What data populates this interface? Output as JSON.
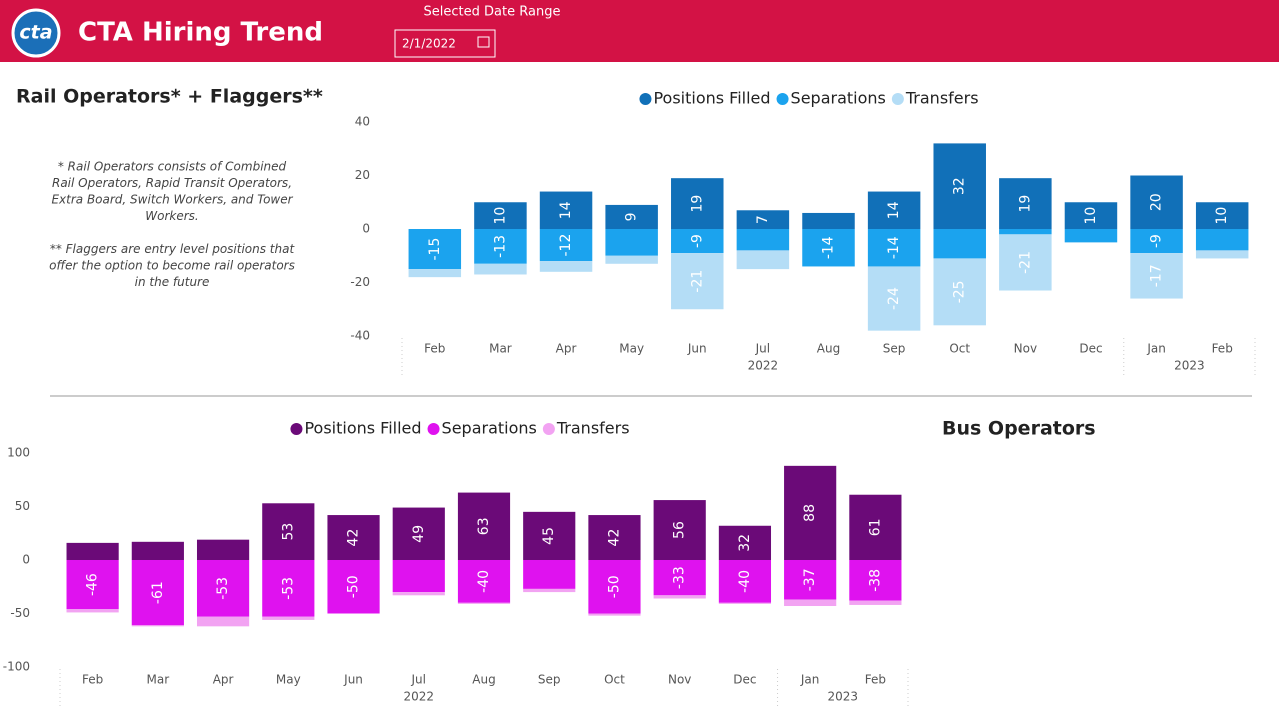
{
  "header": {
    "logo": "cta",
    "title": "CTA Hiring Trend",
    "date_label": "Selected Date Range",
    "date_value": "2/1/2022"
  },
  "rail_panel": {
    "title": "Rail Operators* + Flaggers**",
    "notes": [
      [
        "* Rail Operators consists of Combined",
        "Rail Operators, Rapid Transit Operators,",
        "Extra Board, Switch Workers, and Tower",
        "Workers."
      ],
      [
        "** Flaggers are entry level positions that",
        "offer the option to become rail operators",
        "in the future"
      ]
    ]
  },
  "bus_panel": {
    "title": "Bus Operators"
  },
  "chart_data": [
    {
      "type": "bar",
      "stacked": true,
      "categories": [
        "Feb",
        "Mar",
        "Apr",
        "May",
        "Jun",
        "Jul",
        "Aug",
        "Sep",
        "Oct",
        "Nov",
        "Dec",
        "Jan",
        "Feb"
      ],
      "x_groups": [
        {
          "label": "2022",
          "count": 11
        },
        {
          "label": "2023",
          "count": 2
        }
      ],
      "ylim": [
        -40,
        40
      ],
      "yticks": [
        -40,
        -20,
        0,
        20,
        40
      ],
      "series": [
        {
          "name": "Positions Filled",
          "color": "#1170b8",
          "values": [
            0,
            10,
            14,
            9,
            19,
            7,
            6,
            14,
            32,
            19,
            10,
            20,
            10
          ],
          "value_labels": [
            null,
            "10",
            "14",
            "9",
            "19",
            "7",
            null,
            "14",
            "32",
            "19",
            "10",
            "20",
            "10"
          ]
        },
        {
          "name": "Separations",
          "color": "#1ba3ee",
          "values": [
            -15,
            -13,
            -12,
            -10,
            -9,
            -8,
            -14,
            -14,
            -11,
            -2,
            -5,
            -9,
            -8
          ],
          "value_labels": [
            "-15",
            "-13",
            "-12",
            null,
            "-9",
            null,
            "-14",
            "-14",
            null,
            null,
            null,
            "-9",
            null
          ]
        },
        {
          "name": "Transfers",
          "color": "#b4ddf6",
          "values": [
            -3,
            -4,
            -4,
            -3,
            -21,
            -7,
            0,
            -24,
            -25,
            -21,
            0,
            -17,
            -3
          ],
          "value_labels": [
            null,
            null,
            null,
            null,
            "-21",
            null,
            null,
            "-24",
            "-25",
            "-21",
            null,
            "-17",
            null
          ]
        }
      ]
    },
    {
      "type": "bar",
      "stacked": true,
      "categories": [
        "Feb",
        "Mar",
        "Apr",
        "May",
        "Jun",
        "Jul",
        "Aug",
        "Sep",
        "Oct",
        "Nov",
        "Dec",
        "Jan",
        "Feb"
      ],
      "x_groups": [
        {
          "label": "2022",
          "count": 11
        },
        {
          "label": "2023",
          "count": 2
        }
      ],
      "ylim": [
        -100,
        100
      ],
      "yticks": [
        -100,
        -50,
        0,
        50,
        100
      ],
      "series": [
        {
          "name": "Positions Filled",
          "color": "#6b0a78",
          "values": [
            16,
            17,
            19,
            53,
            42,
            49,
            63,
            45,
            42,
            56,
            32,
            88,
            61
          ],
          "value_labels": [
            null,
            null,
            null,
            "53",
            "42",
            "49",
            "63",
            "45",
            "42",
            "56",
            "32",
            "88",
            "61"
          ]
        },
        {
          "name": "Separations",
          "color": "#df12ef",
          "values": [
            -46,
            -61,
            -53,
            -53,
            -50,
            -30,
            -40,
            -27,
            -50,
            -33,
            -40,
            -37,
            -38
          ],
          "value_labels": [
            "-46",
            "-61",
            "-53",
            "-53",
            "-50",
            null,
            "-40",
            null,
            "-50",
            "-33",
            "-40",
            "-37",
            "-38"
          ]
        },
        {
          "name": "Transfers",
          "color": "#f2a3f2",
          "values": [
            -3,
            -1,
            -9,
            -3,
            0,
            -3,
            -1,
            -3,
            -2,
            -3,
            -1,
            -6,
            -4
          ],
          "value_labels": [
            null,
            null,
            null,
            null,
            null,
            null,
            null,
            null,
            null,
            null,
            null,
            null,
            null
          ]
        }
      ]
    }
  ]
}
